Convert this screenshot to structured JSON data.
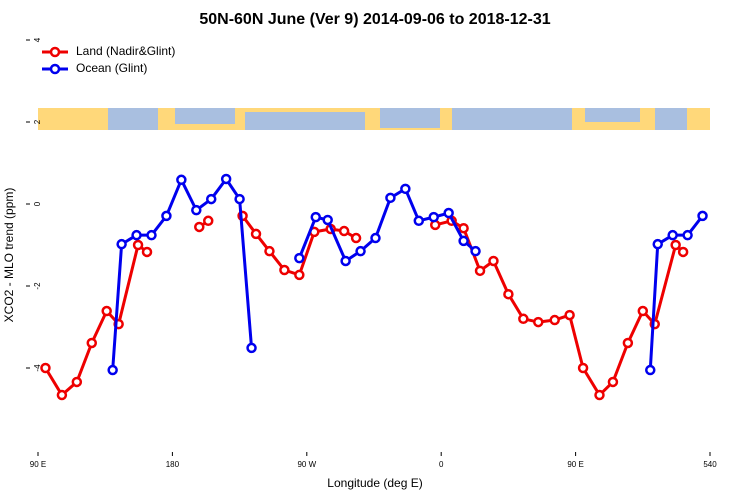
{
  "chart_data": {
    "type": "line",
    "title": "50N-60N June (Ver 9)   2014-09-06 to 2018-12-31",
    "xlabel": "Longitude (deg E)",
    "ylabel": "XCO2 - MLO trend (ppm)",
    "xlim": [
      90,
      540
    ],
    "xticks": [
      {
        "value": 90,
        "label": "90 E"
      },
      180,
      {
        "value": 270,
        "label": "90 W"
      },
      {
        "value": 360,
        "label": "0"
      },
      {
        "value": 450,
        "label": "90 E"
      },
      540
    ],
    "ylim": [
      -6,
      4
    ],
    "yticks": [
      -4,
      -2,
      0,
      2,
      4
    ],
    "legend": "top-left",
    "series": [
      {
        "name": "Land (Nadir&Glint)",
        "color": "#ee0000",
        "x": [
          95,
          106,
          116,
          126,
          136,
          144,
          157,
          163,
          null,
          198,
          204,
          null,
          227,
          236,
          245,
          255,
          265,
          275,
          286,
          295,
          303,
          null,
          356,
          367,
          375,
          386,
          395,
          405,
          415,
          425,
          436,
          446,
          455,
          466,
          475,
          485,
          495,
          503,
          517,
          522
        ],
        "values": [
          -4.0,
          -4.66,
          -4.34,
          -3.39,
          -2.61,
          -2.93,
          -1.0,
          -1.17,
          null,
          -0.56,
          -0.41,
          null,
          -0.29,
          -0.73,
          -1.15,
          -1.61,
          -1.73,
          -0.68,
          -0.61,
          -0.66,
          -0.83,
          null,
          -0.51,
          -0.41,
          -0.59,
          -1.63,
          -1.39,
          -2.2,
          -2.8,
          -2.88,
          -2.83,
          -2.71,
          -4.0,
          -4.66,
          -4.34,
          -3.39,
          -2.61,
          -2.93,
          -1.0,
          -1.17
        ]
      },
      {
        "name": "Ocean (Glint)",
        "color": "#0000ee",
        "x": [
          140,
          146,
          156,
          166,
          176,
          186,
          196,
          206,
          216,
          225,
          233,
          null,
          265,
          276,
          284,
          296,
          306,
          316,
          326,
          336,
          345,
          355,
          365,
          375,
          383,
          null,
          500,
          505,
          515,
          525,
          535
        ],
        "values": [
          -4.05,
          -0.98,
          -0.76,
          -0.76,
          -0.29,
          0.59,
          -0.15,
          0.12,
          0.61,
          0.12,
          -3.51,
          null,
          -1.32,
          -0.32,
          -0.39,
          -1.39,
          -1.15,
          -0.83,
          0.15,
          0.37,
          -0.41,
          -0.32,
          -0.22,
          -0.9,
          -1.15,
          null,
          -4.05,
          -0.98,
          -0.76,
          -0.76,
          -0.29
        ]
      }
    ]
  }
}
